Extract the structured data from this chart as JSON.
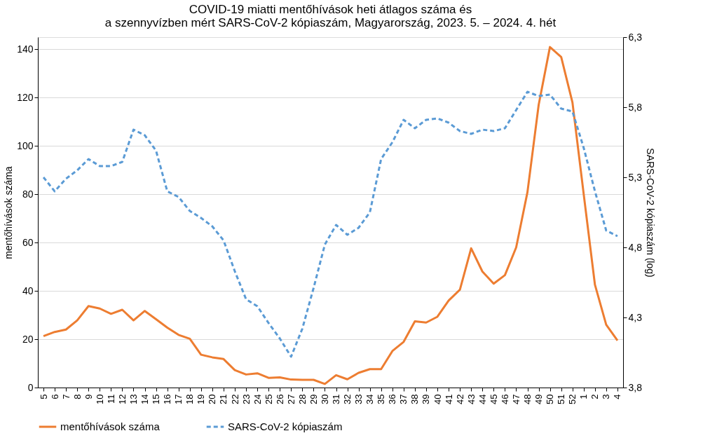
{
  "chart_data": {
    "type": "line",
    "title": [
      "COVID-19 miatti mentőhívások heti átlagos száma és",
      "a szennyvízben mért SARS-CoV-2 kópiaszám, Magyarország, 2023. 5. – 2024. 4. hét"
    ],
    "ylabel": "mentőhívások száma",
    "y2label": "SARS-CoV-2 kópiaszám (log)",
    "categories": [
      "5",
      "6",
      "7",
      "8",
      "9",
      "10",
      "11",
      "12",
      "13",
      "14",
      "15",
      "16",
      "17",
      "18",
      "19",
      "20",
      "21",
      "22",
      "23",
      "24",
      "25",
      "26",
      "27",
      "28",
      "29",
      "30",
      "31",
      "32",
      "33",
      "34",
      "35",
      "36",
      "37",
      "38",
      "39",
      "40",
      "41",
      "42",
      "43",
      "44",
      "45",
      "46",
      "47",
      "48",
      "49",
      "50",
      "51",
      "52",
      "1",
      "2",
      "3",
      "4"
    ],
    "ylim": [
      0,
      145
    ],
    "yticks": [
      0,
      20,
      40,
      60,
      80,
      100,
      120,
      140
    ],
    "y2lim": [
      3.8,
      6.3
    ],
    "y2ticks": [
      {
        "value": 3.8,
        "label": "3,8"
      },
      {
        "value": 4.3,
        "label": "4,3"
      },
      {
        "value": 4.8,
        "label": "4,8"
      },
      {
        "value": 5.3,
        "label": "5,3"
      },
      {
        "value": 5.8,
        "label": "5,8"
      },
      {
        "value": 6.3,
        "label": "6,3"
      }
    ],
    "grid": "y",
    "legend": "bottom",
    "series": [
      {
        "name": "mentőhívások száma",
        "color": "#ed7d31",
        "line_style": "solid",
        "values": [
          21.3,
          23,
          24,
          27.8,
          33.7,
          32.7,
          30.5,
          32.2,
          27.8,
          31.7,
          28.3,
          24.8,
          21.8,
          20.2,
          13.6,
          12.5,
          11.8,
          7.2,
          5.4,
          5.9,
          4.0,
          4.2,
          3.3,
          3.2,
          3.2,
          1.5,
          5.1,
          3.4,
          6.1,
          7.6,
          7.6,
          15.1,
          18.9,
          27.4,
          26.9,
          29.3,
          36.0,
          40.5,
          57.6,
          48.0,
          43.0,
          46.5,
          58.0,
          80.8,
          117,
          140.9,
          136.8,
          118,
          80,
          42.5,
          26,
          19.5
        ]
      },
      {
        "name": "SARS-CoV-2 kópiaszám",
        "color": "#5b9bd5",
        "line_style": "dashed",
        "axis": "y2",
        "values": [
          5.3,
          5.2,
          5.29,
          5.35,
          5.43,
          5.38,
          5.38,
          5.41,
          5.64,
          5.6,
          5.49,
          5.2,
          5.16,
          5.06,
          5.01,
          4.95,
          4.85,
          4.63,
          4.43,
          4.38,
          4.26,
          4.15,
          4.02,
          4.22,
          4.51,
          4.82,
          4.96,
          4.89,
          4.94,
          5.05,
          5.43,
          5.55,
          5.71,
          5.65,
          5.71,
          5.72,
          5.69,
          5.63,
          5.61,
          5.64,
          5.63,
          5.65,
          5.78,
          5.91,
          5.88,
          5.89,
          5.79,
          5.77,
          5.51,
          5.2,
          4.92,
          4.88
        ]
      }
    ]
  }
}
